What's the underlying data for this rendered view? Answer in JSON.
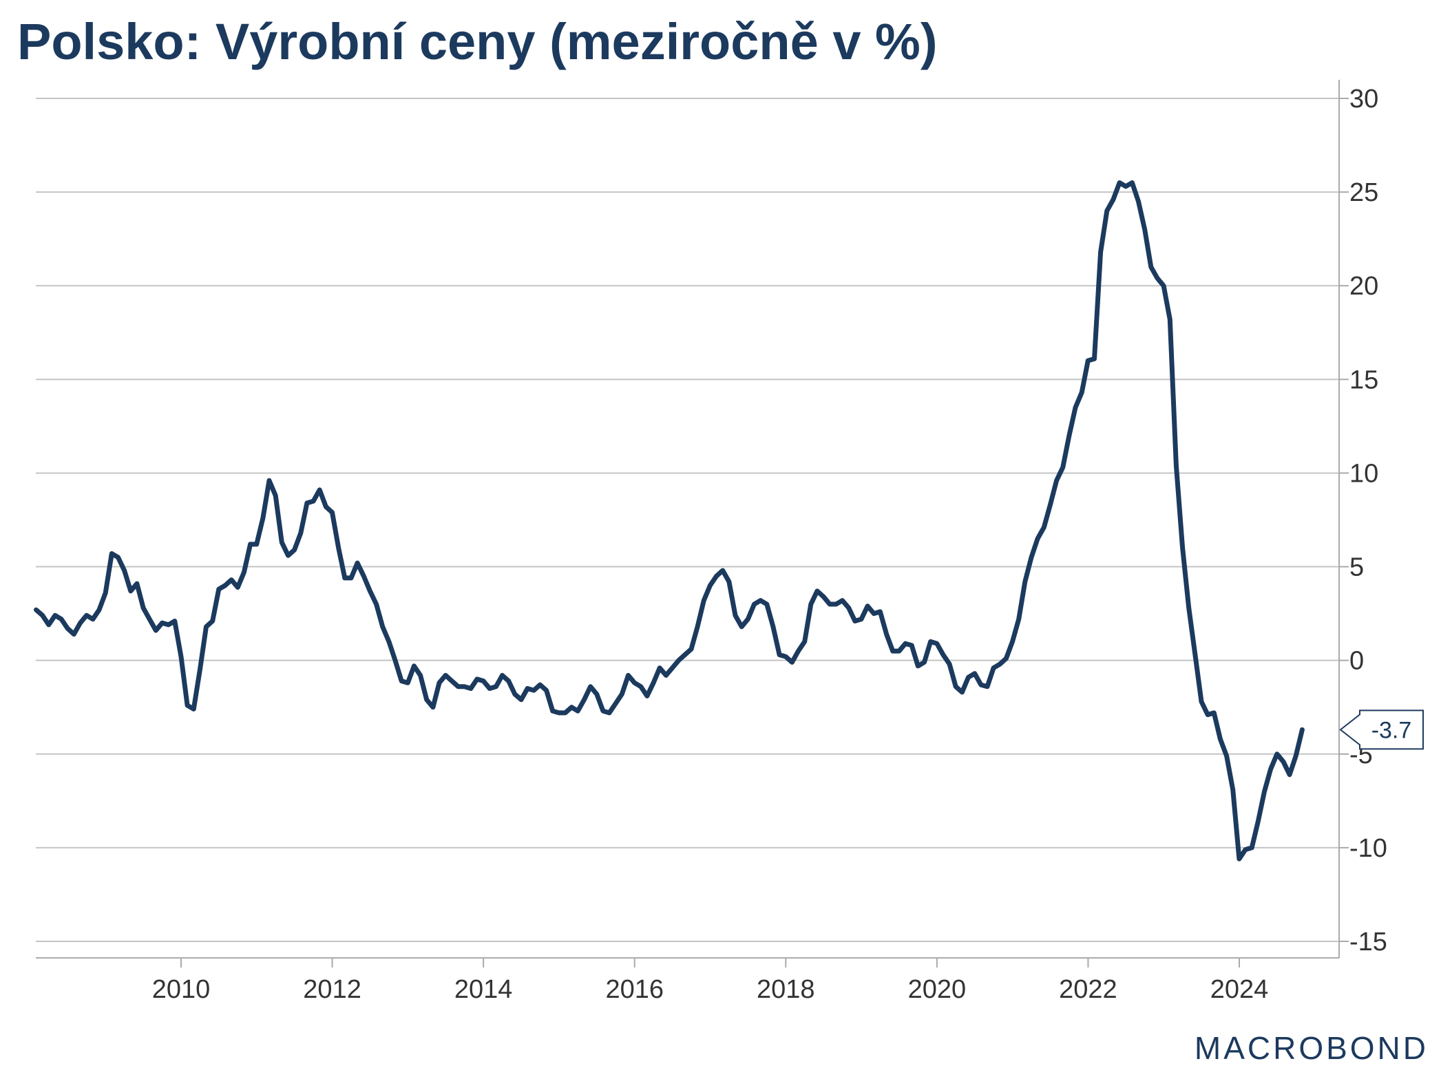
{
  "title": "Polsko: Výrobní ceny (meziročně v %)",
  "logo": "MACROBOND",
  "colors": {
    "line": "#1c3a5e",
    "grid": "#c4c4c4",
    "text": "#333333"
  },
  "chart_data": {
    "type": "line",
    "title": "Polsko: Výrobní ceny (meziročně v %)",
    "xlabel": "",
    "ylabel": "",
    "y_axis_side": "right",
    "ylim": [
      -16,
      31
    ],
    "yticks": [
      30,
      25,
      20,
      15,
      10,
      5,
      0,
      -5,
      -10,
      -15
    ],
    "xlim": [
      2008.0,
      2025.27
    ],
    "xticks": [
      "2010",
      "2012",
      "2014",
      "2016",
      "2018",
      "2020",
      "2022",
      "2024"
    ],
    "grid": true,
    "last_value_label": "-3.7",
    "series": [
      {
        "name": "Výrobní ceny (meziročně v %)",
        "x_start": 2008.083,
        "x_step": 0.08333,
        "values": [
          2.7,
          2.4,
          1.9,
          2.4,
          2.2,
          1.7,
          1.4,
          2.0,
          2.4,
          2.2,
          2.7,
          3.6,
          5.7,
          5.5,
          4.8,
          3.7,
          4.1,
          2.8,
          2.2,
          1.6,
          2.0,
          1.9,
          2.1,
          0.2,
          -2.4,
          -2.6,
          -0.5,
          1.8,
          2.1,
          3.8,
          4.0,
          4.3,
          3.9,
          4.7,
          6.2,
          6.2,
          7.6,
          9.6,
          8.8,
          6.3,
          5.6,
          5.9,
          6.8,
          8.4,
          8.5,
          9.1,
          8.2,
          7.9,
          6.0,
          4.4,
          4.4,
          5.2,
          4.5,
          3.7,
          3.0,
          1.8,
          1.0,
          0.0,
          -1.1,
          -1.2,
          -0.3,
          -0.8,
          -2.1,
          -2.5,
          -1.2,
          -0.8,
          -1.1,
          -1.4,
          -1.4,
          -1.5,
          -1.0,
          -1.1,
          -1.5,
          -1.4,
          -0.8,
          -1.1,
          -1.8,
          -2.1,
          -1.5,
          -1.6,
          -1.3,
          -1.6,
          -2.7,
          -2.8,
          -2.8,
          -2.5,
          -2.7,
          -2.1,
          -1.4,
          -1.8,
          -2.7,
          -2.8,
          -2.3,
          -1.8,
          -0.8,
          -1.2,
          -1.4,
          -1.9,
          -1.2,
          -0.4,
          -0.8,
          -0.4,
          0.0,
          0.3,
          0.6,
          1.8,
          3.2,
          4.0,
          4.5,
          4.8,
          4.2,
          2.4,
          1.8,
          2.2,
          3.0,
          3.2,
          3.0,
          1.8,
          0.3,
          0.2,
          -0.1,
          0.5,
          1.0,
          3.0,
          3.7,
          3.4,
          3.0,
          3.0,
          3.2,
          2.8,
          2.1,
          2.2,
          2.9,
          2.5,
          2.6,
          1.4,
          0.5,
          0.5,
          0.9,
          0.8,
          -0.3,
          -0.1,
          1.0,
          0.9,
          0.3,
          -0.2,
          -1.4,
          -1.7,
          -0.9,
          -0.7,
          -1.3,
          -1.4,
          -0.4,
          -0.2,
          0.1,
          1.0,
          2.2,
          4.2,
          5.5,
          6.5,
          7.1,
          8.3,
          9.6,
          10.3,
          12.0,
          13.5,
          14.3,
          16.0,
          16.1,
          21.8,
          24.0,
          24.6,
          25.5,
          25.3,
          25.5,
          24.5,
          23.0,
          21.0,
          20.4,
          20.0,
          18.2,
          10.4,
          6.0,
          2.8,
          0.3,
          -2.2,
          -2.9,
          -2.8,
          -4.2,
          -5.1,
          -6.9,
          -10.6,
          -10.1,
          -10.0,
          -8.6,
          -7.0,
          -5.8,
          -5.0,
          -5.4,
          -6.1,
          -5.1,
          -3.7
        ]
      }
    ]
  }
}
